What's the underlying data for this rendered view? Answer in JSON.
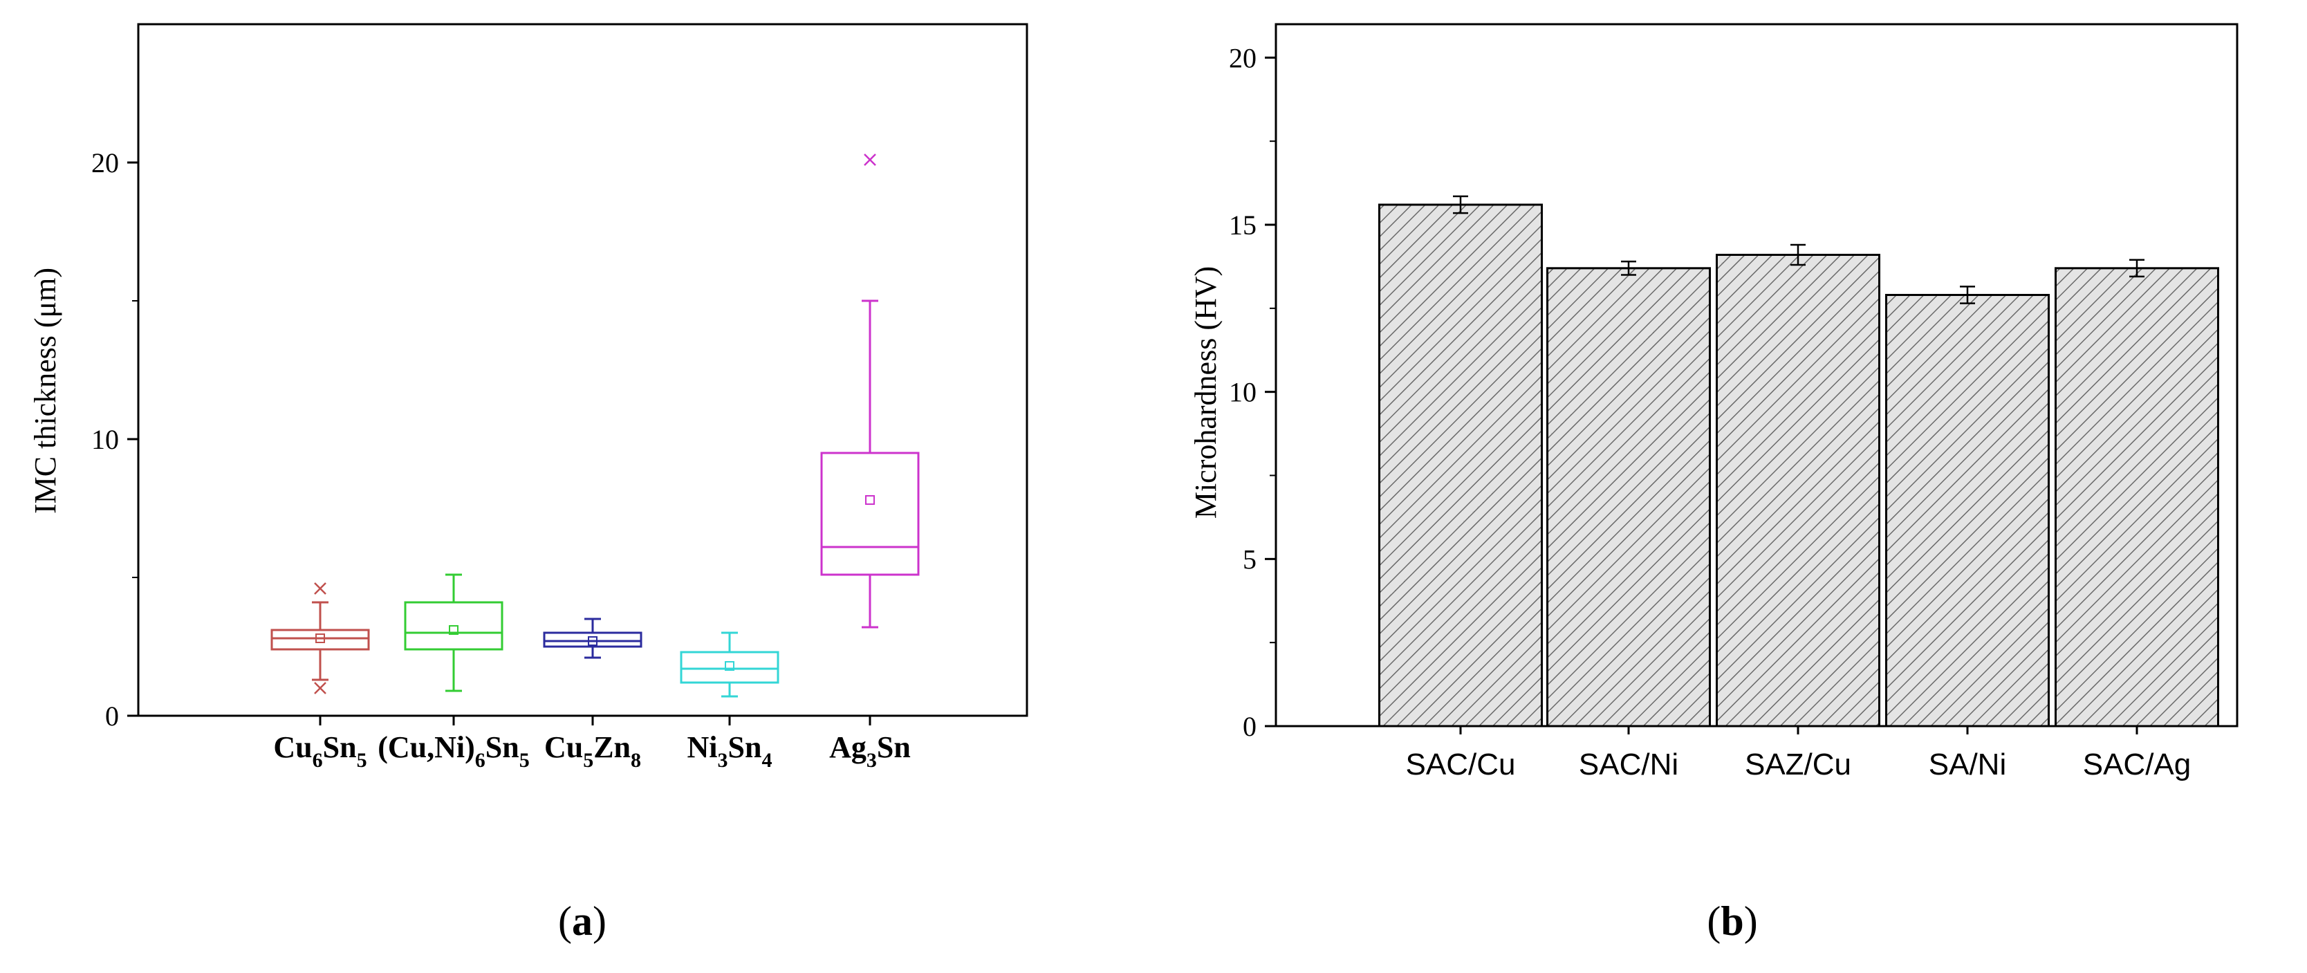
{
  "chart_data": [
    {
      "type": "box",
      "panel_label": "(a)",
      "ylabel": "IMC thickness (μm)",
      "xlabel": "",
      "ylim": [
        0,
        25
      ],
      "yticks": [
        0,
        10,
        20
      ],
      "ytick_labels": [
        "0",
        "10",
        "20"
      ],
      "grid": false,
      "categories": [
        {
          "base": "Cu",
          "sub1": "6",
          "mid": "Sn",
          "sub2": "5",
          "tail": ""
        },
        {
          "base": "(Cu,Ni)",
          "sub1": "6",
          "mid": "Sn",
          "sub2": "5",
          "tail": ""
        },
        {
          "base": "Cu",
          "sub1": "5",
          "mid": "Zn",
          "sub2": "8",
          "tail": ""
        },
        {
          "base": "Ni",
          "sub1": "3",
          "mid": "Sn",
          "sub2": "4",
          "tail": ""
        },
        {
          "base": "Ag",
          "sub1": "3",
          "mid": "Sn",
          "sub2": "",
          "tail": ""
        }
      ],
      "boxes": [
        {
          "q1": 2.4,
          "median": 2.8,
          "q3": 3.1,
          "mean": 2.8,
          "whisker_low": 1.3,
          "whisker_high": 4.1,
          "outliers": [
            4.6,
            1.0
          ],
          "color": "#c0504d"
        },
        {
          "q1": 2.4,
          "median": 3.0,
          "q3": 4.1,
          "mean": 3.1,
          "whisker_low": 0.9,
          "whisker_high": 5.1,
          "outliers": [],
          "color": "#33cc33"
        },
        {
          "q1": 2.5,
          "median": 2.7,
          "q3": 3.0,
          "mean": 2.7,
          "whisker_low": 2.1,
          "whisker_high": 3.5,
          "outliers": [],
          "color": "#2b2b9e"
        },
        {
          "q1": 1.2,
          "median": 1.7,
          "q3": 2.3,
          "mean": 1.8,
          "whisker_low": 0.7,
          "whisker_high": 3.0,
          "outliers": [],
          "color": "#33d6d6"
        },
        {
          "q1": 5.1,
          "median": 6.1,
          "q3": 9.5,
          "mean": 7.8,
          "whisker_low": 3.2,
          "whisker_high": 15.0,
          "outliers": [
            20.1
          ],
          "color": "#cc33cc"
        }
      ]
    },
    {
      "type": "bar",
      "panel_label": "(b)",
      "ylabel": "Microhardness (HV)",
      "xlabel": "",
      "ylim": [
        0,
        21
      ],
      "yticks": [
        0,
        5,
        10,
        15,
        20
      ],
      "ytick_labels": [
        "0",
        "5",
        "10",
        "15",
        "20"
      ],
      "grid": false,
      "categories": [
        "SAC/Cu",
        "SAC/Ni",
        "SAZ/Cu",
        "SA/Ni",
        "SAC/Ag"
      ],
      "values": [
        15.6,
        13.7,
        14.1,
        12.9,
        13.7
      ],
      "errors": [
        0.25,
        0.2,
        0.3,
        0.25,
        0.25
      ],
      "bar_fill": "hatched-gray"
    }
  ],
  "panel_labels": {
    "a": "(a)",
    "b": "(b)"
  },
  "colors": {
    "axis": "#000000",
    "hatch_stroke": "#6a6a6a",
    "hatch_fill": "#e4e4e4"
  }
}
